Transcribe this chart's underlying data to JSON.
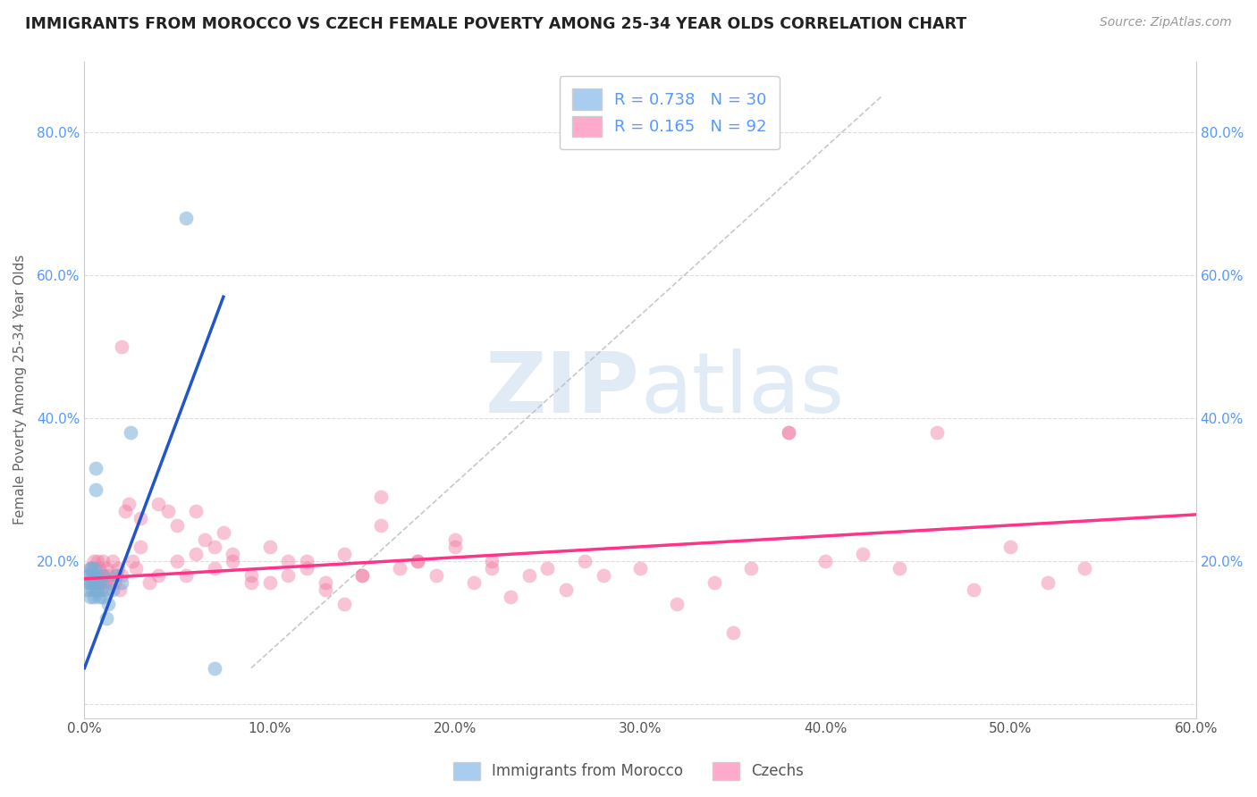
{
  "title": "IMMIGRANTS FROM MOROCCO VS CZECH FEMALE POVERTY AMONG 25-34 YEAR OLDS CORRELATION CHART",
  "source": "Source: ZipAtlas.com",
  "ylabel": "Female Poverty Among 25-34 Year Olds",
  "xlim": [
    0.0,
    0.6
  ],
  "ylim": [
    -0.02,
    0.9
  ],
  "x_tick_vals": [
    0.0,
    0.1,
    0.2,
    0.3,
    0.4,
    0.5,
    0.6
  ],
  "x_tick_labels": [
    "0.0%",
    "10.0%",
    "20.0%",
    "30.0%",
    "40.0%",
    "50.0%",
    "60.0%"
  ],
  "y_tick_vals": [
    0.0,
    0.2,
    0.4,
    0.6,
    0.8
  ],
  "y_tick_labels": [
    "",
    "20.0%",
    "40.0%",
    "60.0%",
    "80.0%"
  ],
  "morocco_color": "#7aaed6",
  "czech_color": "#f07aa0",
  "morocco_line_color": "#2255cc",
  "czech_line_color": "#ff3388",
  "morocco_R": 0.738,
  "morocco_N": 30,
  "czech_R": 0.165,
  "czech_N": 92,
  "legend_label_morocco": "Immigrants from Morocco",
  "legend_label_czech": "Czechs",
  "watermark_zip": "ZIP",
  "watermark_atlas": "atlas",
  "background_color": "#ffffff",
  "grid_color": "#dddddd",
  "tick_color": "#5599ff",
  "morocco_x": [
    0.001,
    0.002,
    0.002,
    0.003,
    0.003,
    0.003,
    0.004,
    0.004,
    0.004,
    0.005,
    0.005,
    0.005,
    0.005,
    0.006,
    0.006,
    0.007,
    0.007,
    0.008,
    0.009,
    0.01,
    0.01,
    0.011,
    0.012,
    0.013,
    0.015,
    0.017,
    0.02,
    0.025,
    0.055,
    0.07
  ],
  "morocco_y": [
    0.16,
    0.17,
    0.18,
    0.15,
    0.19,
    0.17,
    0.16,
    0.18,
    0.19,
    0.15,
    0.17,
    0.18,
    0.19,
    0.3,
    0.33,
    0.16,
    0.17,
    0.15,
    0.17,
    0.18,
    0.15,
    0.16,
    0.12,
    0.14,
    0.16,
    0.18,
    0.17,
    0.38,
    0.68,
    0.05
  ],
  "czech_x": [
    0.002,
    0.003,
    0.004,
    0.005,
    0.005,
    0.006,
    0.006,
    0.007,
    0.007,
    0.008,
    0.008,
    0.009,
    0.01,
    0.01,
    0.011,
    0.012,
    0.013,
    0.014,
    0.015,
    0.016,
    0.017,
    0.018,
    0.019,
    0.02,
    0.022,
    0.024,
    0.026,
    0.028,
    0.03,
    0.035,
    0.04,
    0.045,
    0.05,
    0.055,
    0.06,
    0.065,
    0.07,
    0.075,
    0.08,
    0.09,
    0.1,
    0.11,
    0.12,
    0.13,
    0.14,
    0.15,
    0.16,
    0.17,
    0.18,
    0.19,
    0.2,
    0.21,
    0.22,
    0.23,
    0.24,
    0.25,
    0.26,
    0.27,
    0.28,
    0.3,
    0.32,
    0.34,
    0.36,
    0.38,
    0.4,
    0.42,
    0.44,
    0.46,
    0.48,
    0.5,
    0.52,
    0.54,
    0.02,
    0.03,
    0.04,
    0.05,
    0.06,
    0.07,
    0.08,
    0.09,
    0.1,
    0.11,
    0.12,
    0.13,
    0.14,
    0.15,
    0.16,
    0.18,
    0.2,
    0.22,
    0.35,
    0.38
  ],
  "czech_y": [
    0.18,
    0.19,
    0.17,
    0.18,
    0.2,
    0.16,
    0.17,
    0.18,
    0.2,
    0.17,
    0.19,
    0.16,
    0.18,
    0.2,
    0.17,
    0.19,
    0.18,
    0.17,
    0.2,
    0.17,
    0.18,
    0.19,
    0.16,
    0.18,
    0.27,
    0.28,
    0.2,
    0.19,
    0.26,
    0.17,
    0.28,
    0.27,
    0.25,
    0.18,
    0.21,
    0.23,
    0.22,
    0.24,
    0.2,
    0.18,
    0.17,
    0.2,
    0.19,
    0.17,
    0.21,
    0.18,
    0.25,
    0.19,
    0.2,
    0.18,
    0.22,
    0.17,
    0.2,
    0.15,
    0.18,
    0.19,
    0.16,
    0.2,
    0.18,
    0.19,
    0.14,
    0.17,
    0.19,
    0.38,
    0.2,
    0.21,
    0.19,
    0.38,
    0.16,
    0.22,
    0.17,
    0.19,
    0.5,
    0.22,
    0.18,
    0.2,
    0.27,
    0.19,
    0.21,
    0.17,
    0.22,
    0.18,
    0.2,
    0.16,
    0.14,
    0.18,
    0.29,
    0.2,
    0.23,
    0.19,
    0.1,
    0.38
  ]
}
